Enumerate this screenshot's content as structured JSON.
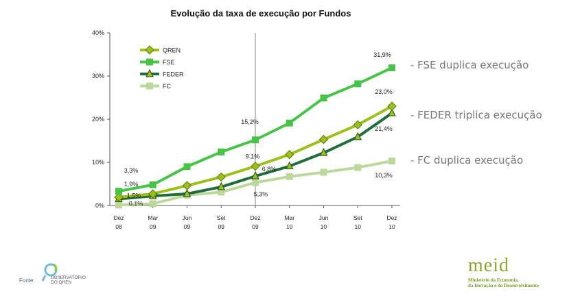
{
  "chart_data": {
    "type": "line",
    "title": "Evolução da taxa  de execução  por Fundos",
    "categories": [
      "Dez 08",
      "Mar 09",
      "Jun 09",
      "Set 09",
      "Dez 09",
      "Mar 10",
      "Jun 10",
      "Set 10",
      "Dez 10"
    ],
    "category_lines": [
      [
        "Dez",
        "08"
      ],
      [
        "Mar",
        "09"
      ],
      [
        "Jun",
        "09"
      ],
      [
        "Set",
        "09"
      ],
      [
        "Dez",
        "09"
      ],
      [
        "Mar",
        "10"
      ],
      [
        "Jun",
        "10"
      ],
      [
        "Set",
        "10"
      ],
      [
        "Dez",
        "10"
      ]
    ],
    "y_ticks": [
      "0%",
      "10%",
      "20%",
      "30%",
      "40%"
    ],
    "ylim": [
      0,
      40
    ],
    "legend_position": "top-left",
    "vertical_marker_category": "Dez 09",
    "series": [
      {
        "name": "QREN",
        "color": "#9cbf1a",
        "marker": "diamond",
        "values": [
          1.9,
          2.7,
          4.6,
          6.6,
          9.1,
          11.8,
          15.3,
          18.7,
          23.0
        ]
      },
      {
        "name": "FSE",
        "color": "#47c447",
        "marker": "square",
        "values": [
          3.3,
          4.8,
          9.0,
          12.4,
          15.2,
          19.1,
          24.9,
          28.2,
          31.9
        ]
      },
      {
        "name": "FEDER",
        "color": "#1f6e3a",
        "marker": "triangle",
        "values": [
          1.5,
          2.2,
          2.7,
          4.3,
          6.8,
          9.1,
          12.2,
          15.9,
          21.4
        ]
      },
      {
        "name": "FC",
        "color": "#bcd79a",
        "marker": "square",
        "values": [
          0.1,
          0.4,
          2.4,
          3.1,
          5.3,
          6.7,
          7.7,
          8.8,
          10.3
        ]
      }
    ],
    "data_labels": [
      {
        "series": "FSE",
        "index": 0,
        "text": "3,3%"
      },
      {
        "series": "QREN",
        "index": 0,
        "text": "1,9%"
      },
      {
        "series": "FEDER",
        "index": 0,
        "text": "1,5%"
      },
      {
        "series": "FC",
        "index": 0,
        "text": "0,1%"
      },
      {
        "series": "FSE",
        "index": 4,
        "text": "15,2%"
      },
      {
        "series": "QREN",
        "index": 4,
        "text": "9,1%"
      },
      {
        "series": "FEDER",
        "index": 4,
        "text": "6,8%"
      },
      {
        "series": "FC",
        "index": 4,
        "text": "5,3%"
      },
      {
        "series": "FSE",
        "index": 8,
        "text": "31,9%"
      },
      {
        "series": "QREN",
        "index": 8,
        "text": "23,0%"
      },
      {
        "series": "FEDER",
        "index": 8,
        "text": "21,4%"
      },
      {
        "series": "FC",
        "index": 8,
        "text": "10,3%"
      }
    ]
  },
  "notes": {
    "fse": "- FSE duplica execução",
    "feder": "- FEDER triplica execução",
    "fc": "- FC duplica execução"
  },
  "footer": {
    "fonte_label": "Fonte:",
    "observatorio_text": "OBSERVATÓRIO DO QREN",
    "meid_word": "meid",
    "meid_subtitle_1": "Ministério da Economia,",
    "meid_subtitle_2": "da Inovação e do Desenvolvimento"
  },
  "colors": {
    "axis": "#555555",
    "marker_line": "#999999",
    "note_text": "#777777",
    "meid_green": "#8aa82a"
  }
}
